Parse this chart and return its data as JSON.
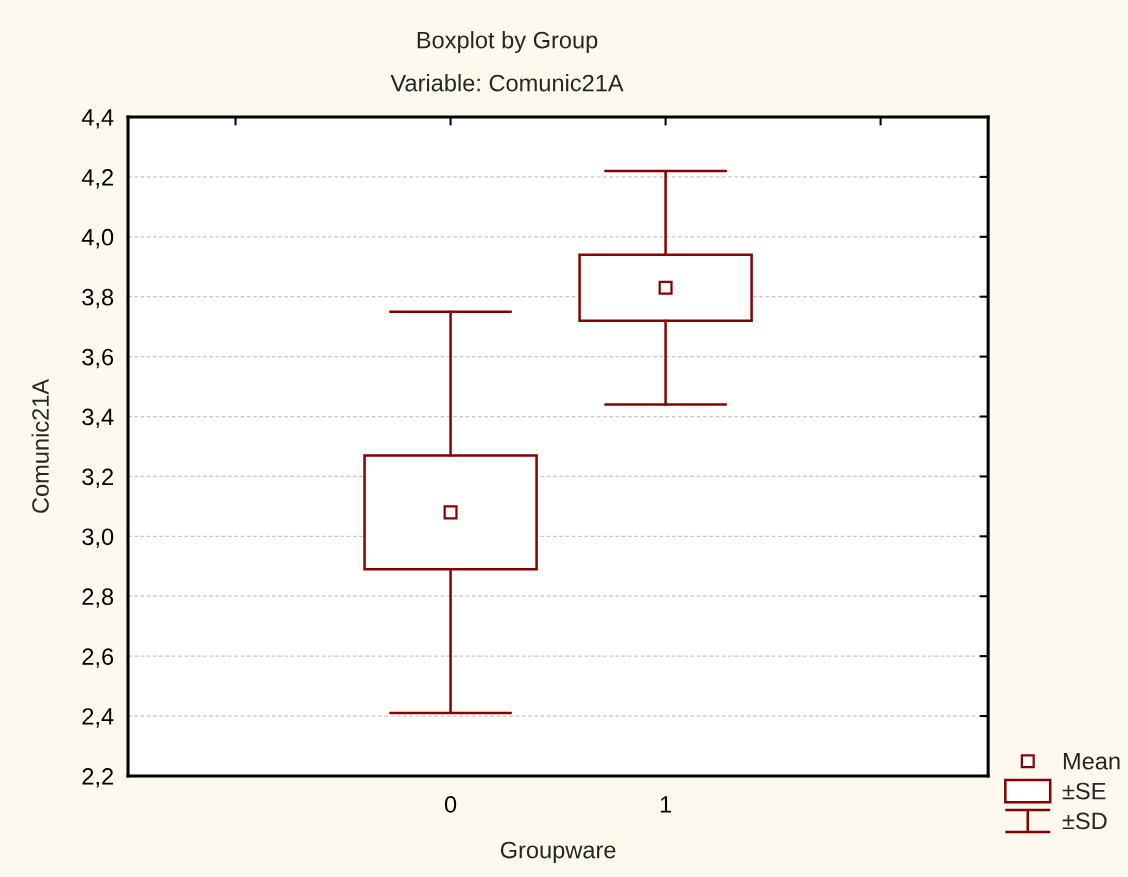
{
  "chart_data": {
    "type": "box",
    "title": "Boxplot by Group",
    "subtitle": "Variable: Comunic21A",
    "xlabel": "Groupware",
    "ylabel": "Comunic21A",
    "categories": [
      "0",
      "1"
    ],
    "series": [
      {
        "color": "#870000",
        "boxes": [
          {
            "low": 2.41,
            "q1": 2.89,
            "q3": 3.27,
            "high": 3.75,
            "mean": 3.08
          },
          {
            "low": 3.44,
            "q1": 3.72,
            "q3": 3.94,
            "high": 4.22,
            "mean": 3.83
          }
        ]
      }
    ],
    "marker": "square",
    "annotations": [
      "Mean",
      "±SE",
      "±SD"
    ],
    "ylim": [
      2.2,
      4.4
    ],
    "yticks": [
      {
        "value": 2.2,
        "label": "2,2"
      },
      {
        "value": 2.4,
        "label": "2,4"
      },
      {
        "value": 2.6,
        "label": "2,6"
      },
      {
        "value": 2.8,
        "label": "2,8"
      },
      {
        "value": 3.0,
        "label": "3,0"
      },
      {
        "value": 3.2,
        "label": "3,2"
      },
      {
        "value": 3.4,
        "label": "3,4"
      },
      {
        "value": 3.6,
        "label": "3,6"
      },
      {
        "value": 3.8,
        "label": "3,8"
      },
      {
        "value": 4.0,
        "label": "4,0"
      },
      {
        "value": 4.2,
        "label": "4,2"
      },
      {
        "value": 4.4,
        "label": "4,4"
      }
    ],
    "grid": "y"
  }
}
